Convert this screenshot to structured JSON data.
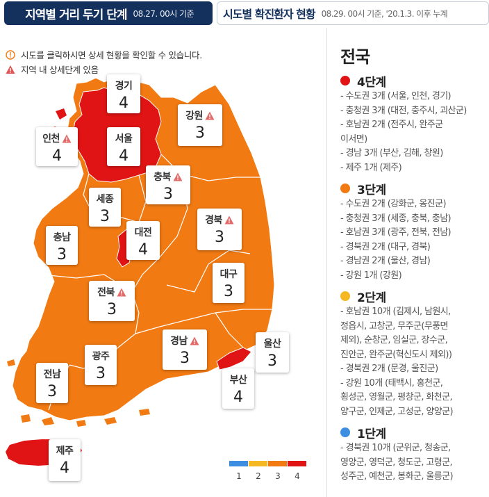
{
  "tabs": [
    {
      "title": "지역별 거리 두기 단계",
      "date": "08.27. 00시 기준"
    },
    {
      "title": "시도별 확진환자 현황",
      "date": "08.29. 00시 기준, '20.1.3. 이후 누계"
    }
  ],
  "notes": [
    {
      "text": "시도를 클릭하시면 상세 현황을 확인할 수 있습니다.",
      "icon": "info-icon"
    },
    {
      "text": "지역 내 상세단계 있음",
      "icon": "warning-icon"
    }
  ],
  "colors": {
    "level1": "#3d8ee0",
    "level2": "#f5b822",
    "level3": "#f27a12",
    "level4": "#e01414",
    "navy": "#14315d"
  },
  "regions": [
    {
      "name": "경기",
      "level": "4",
      "warn": false
    },
    {
      "name": "인천",
      "level": "4",
      "warn": true
    },
    {
      "name": "서울",
      "level": "4",
      "warn": false
    },
    {
      "name": "강원",
      "level": "3",
      "warn": true
    },
    {
      "name": "충북",
      "level": "3",
      "warn": true
    },
    {
      "name": "세종",
      "level": "3",
      "warn": false
    },
    {
      "name": "대전",
      "level": "4",
      "warn": false
    },
    {
      "name": "경북",
      "level": "3",
      "warn": true
    },
    {
      "name": "충남",
      "level": "3",
      "warn": false
    },
    {
      "name": "대구",
      "level": "3",
      "warn": false
    },
    {
      "name": "전북",
      "level": "3",
      "warn": true
    },
    {
      "name": "경남",
      "level": "3",
      "warn": true
    },
    {
      "name": "울산",
      "level": "3",
      "warn": false
    },
    {
      "name": "광주",
      "level": "3",
      "warn": false
    },
    {
      "name": "전남",
      "level": "3",
      "warn": false
    },
    {
      "name": "부산",
      "level": "4",
      "warn": false
    },
    {
      "name": "제주",
      "level": "4",
      "warn": false
    }
  ],
  "legend": [
    "1",
    "2",
    "3",
    "4"
  ],
  "side": {
    "title": "전국",
    "levels": [
      {
        "label": "4단계",
        "color": "#e01414",
        "items": [
          "- 수도권 3개 (서울, 인천, 경기)",
          "- 충청권 3개 (대전, 충주시, 괴산군)",
          "- 호남권 2개 (전주시, 완주군\n이서면)",
          "- 경남 3개 (부산, 김해, 창원)",
          "- 제주 1개 (제주)"
        ]
      },
      {
        "label": "3단계",
        "color": "#f27a12",
        "items": [
          "- 수도권 2개 (강화군, 옹진군)",
          "- 충청권 3개 (세종, 충북, 충남)",
          "- 호남권 3개 (광주, 전북, 전남)",
          "- 경북권 2개 (대구, 경북)",
          "- 경남권 2개 (울산, 경남)",
          "- 강원 1개 (강원)"
        ]
      },
      {
        "label": "2단계",
        "color": "#f5b822",
        "items": [
          "- 호남권 10개 (김제시, 남원시,\n정읍시, 고창군, 무주군(무풍면\n제외), 순창군, 임실군, 장수군,\n진안군, 완주군(혁신도시 제외))",
          "- 경북권 2개 (문경, 울진군)",
          "- 강원 10개 (태백시, 홍천군,\n횡성군, 영월군, 평창군, 화천군,\n양구군, 인제군, 고성군, 양양군)"
        ]
      },
      {
        "label": "1단계",
        "color": "#3d8ee0",
        "items": [
          "- 경북권 10개 (군위군, 청송군,\n영양군, 영덕군, 청도군, 고령군,\n성주군, 예천군, 봉화군, 울릉군)"
        ]
      }
    ]
  }
}
